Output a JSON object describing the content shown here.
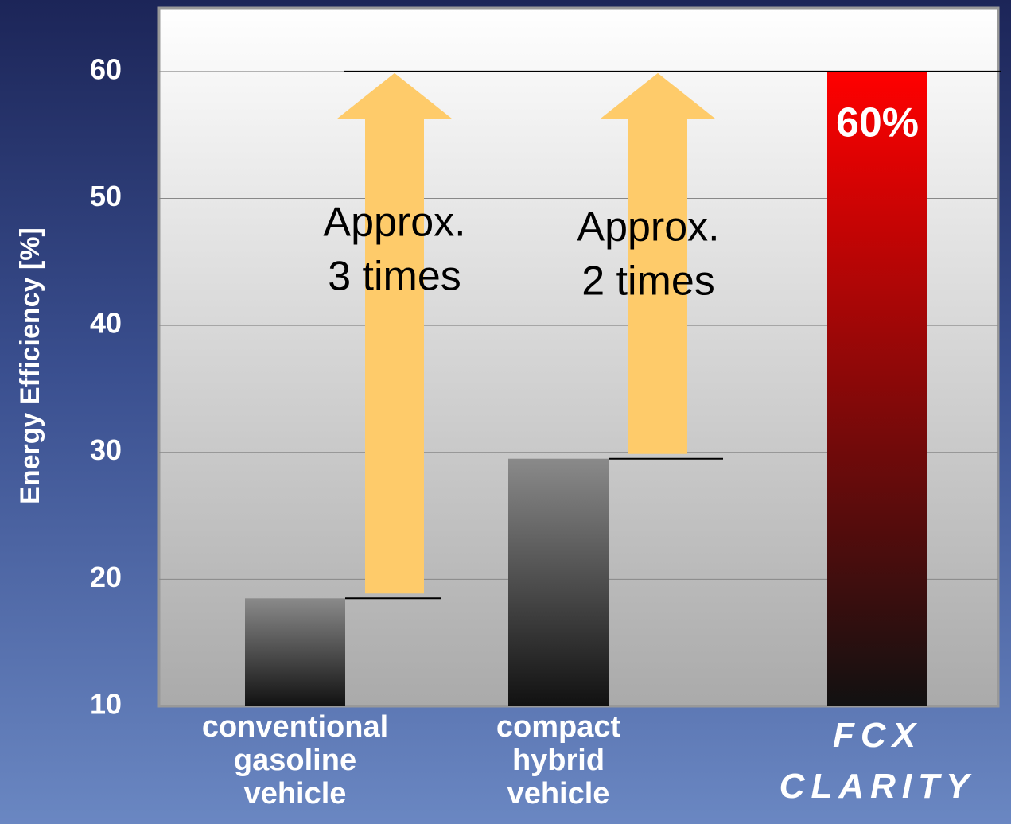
{
  "chart_data": {
    "type": "bar",
    "y_label": "Energy Efficiency  [%]",
    "categories": [
      "conventional gasoline vehicle",
      "compact hybrid vehicle",
      "FCX CLARITY"
    ],
    "values": [
      18.5,
      29.5,
      60
    ],
    "value_labels": [
      null,
      null,
      "60%"
    ],
    "colors": [
      "#8a8a8a",
      "#8a8a8a",
      "#ff0000"
    ],
    "annotations": [
      [
        "Approx.",
        "3 times"
      ],
      [
        "Approx.",
        "2 times"
      ]
    ],
    "arrow_color": "#fecb6a",
    "ylim": [
      10,
      65
    ],
    "yticks": [
      10,
      20,
      30,
      40,
      50,
      60
    ],
    "grid": true
  }
}
